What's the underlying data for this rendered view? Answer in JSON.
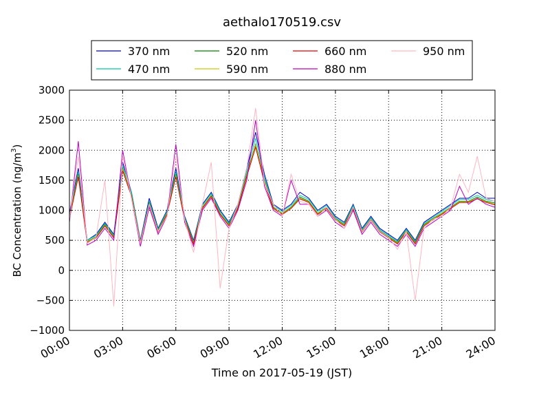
{
  "chart_data": {
    "type": "line",
    "title": "aethalo170519.csv",
    "xlabel": "Time on 2017-05-19 (JST)",
    "ylabel_main": "BC Concentration (ng/m",
    "ylabel_sup": "3",
    "ylabel_tail": ")",
    "xlim": [
      "00:00",
      "24:00"
    ],
    "ylim": [
      -1000,
      3000
    ],
    "grid": true,
    "grid_style": "dotted",
    "legend_position": "top-center",
    "legend_columns": 4,
    "x_ticks": [
      "00:00",
      "03:00",
      "06:00",
      "09:00",
      "12:00",
      "15:00",
      "18:00",
      "21:00",
      "24:00"
    ],
    "y_ticks": [
      "−1000",
      "−500",
      "0",
      "500",
      "1000",
      "1500",
      "2000",
      "2500",
      "3000"
    ],
    "y_tick_values": [
      -1000,
      -500,
      0,
      500,
      1000,
      1500,
      2000,
      2500,
      3000
    ],
    "x_hours": [
      0,
      0.5,
      1,
      1.5,
      2,
      2.5,
      3,
      3.5,
      4,
      4.5,
      5,
      5.5,
      6,
      6.5,
      7,
      7.5,
      8,
      8.5,
      9,
      9.5,
      10,
      10.5,
      11,
      11.5,
      12,
      12.5,
      13,
      13.5,
      14,
      14.5,
      15,
      15.5,
      16,
      16.5,
      17,
      17.5,
      18,
      18.5,
      19,
      19.5,
      20,
      20.5,
      21,
      21.5,
      22,
      22.5,
      23,
      23.5,
      24
    ],
    "series": [
      {
        "name": "370 nm",
        "color": "#0000cc",
        "values": [
          950,
          1700,
          500,
          600,
          800,
          600,
          1800,
          1300,
          500,
          1200,
          700,
          1000,
          1700,
          900,
          500,
          1100,
          1300,
          1000,
          800,
          1100,
          1700,
          2300,
          1600,
          1100,
          1000,
          1100,
          1300,
          1200,
          1000,
          1100,
          900,
          800,
          1100,
          700,
          900,
          700,
          600,
          500,
          700,
          500,
          800,
          900,
          1000,
          1100,
          1200,
          1200,
          1300,
          1200,
          1200
        ]
      },
      {
        "name": "470 nm",
        "color": "#00c8a0",
        "values": [
          900,
          1650,
          500,
          580,
          780,
          580,
          1750,
          1300,
          480,
          1150,
          680,
          980,
          1650,
          880,
          480,
          1080,
          1280,
          980,
          780,
          1080,
          1650,
          2200,
          1550,
          1080,
          980,
          1080,
          1250,
          1180,
          980,
          1080,
          880,
          780,
          1080,
          680,
          880,
          680,
          580,
          480,
          680,
          480,
          780,
          880,
          980,
          1080,
          1180,
          1180,
          1250,
          1180,
          1150
        ]
      },
      {
        "name": "520 nm",
        "color": "#008000",
        "values": [
          880,
          1600,
          480,
          560,
          760,
          560,
          1700,
          1250,
          470,
          1120,
          660,
          950,
          1600,
          860,
          460,
          1050,
          1250,
          950,
          760,
          1050,
          1600,
          2100,
          1500,
          1050,
          950,
          1050,
          1220,
          1150,
          950,
          1050,
          860,
          760,
          1050,
          660,
          860,
          660,
          560,
          460,
          660,
          460,
          760,
          860,
          950,
          1050,
          1150,
          1150,
          1220,
          1150,
          1120
        ]
      },
      {
        "name": "590 nm",
        "color": "#c8c800",
        "values": [
          870,
          1580,
          470,
          550,
          750,
          550,
          1680,
          1240,
          460,
          1100,
          650,
          940,
          1580,
          850,
          450,
          1040,
          1240,
          940,
          750,
          1040,
          1580,
          2080,
          1480,
          1040,
          940,
          1040,
          1200,
          1140,
          940,
          1040,
          850,
          750,
          1040,
          650,
          850,
          650,
          550,
          450,
          650,
          450,
          750,
          850,
          940,
          1040,
          1140,
          1140,
          1200,
          1140,
          1100
        ]
      },
      {
        "name": "660 nm",
        "color": "#dd0000",
        "values": [
          860,
          1560,
          460,
          540,
          740,
          540,
          1660,
          1230,
          450,
          1090,
          640,
          930,
          1560,
          840,
          440,
          1030,
          1230,
          930,
          740,
          1030,
          1560,
          2050,
          1460,
          1030,
          930,
          1030,
          1190,
          1130,
          930,
          1030,
          840,
          740,
          1030,
          640,
          840,
          640,
          540,
          440,
          640,
          440,
          740,
          840,
          930,
          1030,
          1130,
          1130,
          1190,
          1130,
          1090
        ]
      },
      {
        "name": "880 nm",
        "color": "#bb00bb",
        "values": [
          800,
          2150,
          420,
          500,
          700,
          500,
          2000,
          1200,
          400,
          1050,
          600,
          900,
          2100,
          800,
          400,
          1000,
          1200,
          900,
          700,
          1000,
          1500,
          2500,
          1400,
          1000,
          900,
          1500,
          1100,
          1100,
          900,
          1000,
          800,
          700,
          1000,
          600,
          800,
          600,
          500,
          400,
          600,
          400,
          700,
          800,
          900,
          1000,
          1400,
          1100,
          1200,
          1100,
          1050
        ]
      },
      {
        "name": "950 nm",
        "color": "#ffb6c1",
        "values": [
          850,
          1900,
          450,
          550,
          1500,
          -600,
          1900,
          1200,
          450,
          1100,
          650,
          900,
          1900,
          850,
          300,
          1100,
          1800,
          -300,
          700,
          1100,
          1700,
          2700,
          1450,
          1100,
          900,
          1600,
          1150,
          1100,
          900,
          1050,
          850,
          700,
          1050,
          650,
          850,
          650,
          550,
          350,
          650,
          -500,
          700,
          850,
          900,
          1050,
          1600,
          1300,
          1900,
          1200,
          1150
        ]
      }
    ]
  }
}
